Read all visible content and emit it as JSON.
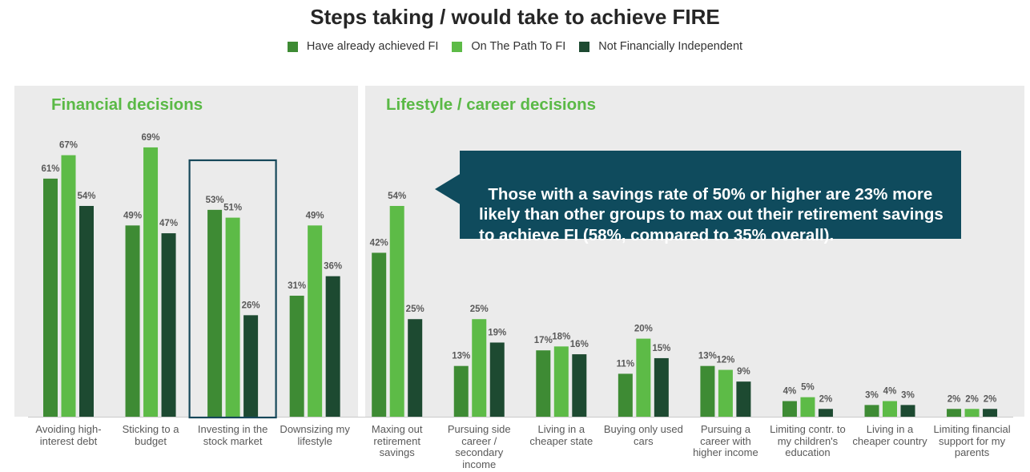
{
  "chart_data": {
    "type": "bar",
    "title": "Steps taking / would take to achieve FIRE",
    "legend_position": "top",
    "grid": false,
    "unit": "%",
    "ylim": [
      0,
      85
    ],
    "series": [
      {
        "name": "Have already achieved FI",
        "color": "#3e8b34",
        "values": [
          61,
          49,
          53,
          31,
          42,
          13,
          17,
          11,
          13,
          4,
          3,
          2
        ]
      },
      {
        "name": "On The Path To FI",
        "color": "#5dbb47",
        "values": [
          67,
          69,
          51,
          49,
          54,
          25,
          18,
          20,
          12,
          5,
          4,
          2
        ]
      },
      {
        "name": "Not Financially Independent",
        "color": "#1d4a31",
        "values": [
          54,
          47,
          26,
          36,
          25,
          19,
          16,
          15,
          9,
          2,
          3,
          2
        ]
      }
    ],
    "panels": [
      {
        "title": "Financial decisions",
        "categories": [
          "Avoiding high-\ninterest debt",
          "Sticking to a\nbudget",
          "Investing in the\nstock market",
          "Downsizing my\nlifestyle"
        ]
      },
      {
        "title": "Lifestyle / career decisions",
        "categories": [
          "Maxing out\nretirement\nsavings",
          "Pursuing side\ncareer /\nsecondary\nincome",
          "Living in a\ncheaper state",
          "Buying only used\ncars",
          "Pursuing a\ncareer with\nhigher income",
          "Limiting contr. to\nmy children's\neducation",
          "Living in a\ncheaper country",
          "Limiting financial\nsupport for my\nparents"
        ]
      }
    ],
    "highlighted_category_index": 2,
    "annotation": {
      "text": "Those with a savings rate of 50% or higher are 23% more\nlikely than other groups to max out their retirement savings\nto achieve FI (58%, compared to 35% overall).",
      "background": "#0f4b5d"
    }
  },
  "colors": {
    "panel_background": "#ebebeb",
    "panel_title": "#5ab946",
    "highlight_border": "#16485a"
  }
}
